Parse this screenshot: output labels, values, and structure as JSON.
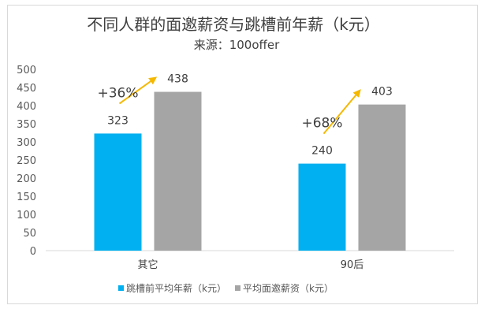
{
  "chart_data": {
    "type": "bar",
    "title": "不同人群的面邀薪资与跳槽前年薪（k元）",
    "subtitle": "来源：100offer",
    "categories": [
      "其它",
      "90后"
    ],
    "series": [
      {
        "name": "跳槽前平均年薪（k元）",
        "values": [
          323,
          240
        ],
        "color": "#00b0f0"
      },
      {
        "name": "平均面邀薪资（k元）",
        "values": [
          438,
          403
        ],
        "color": "#a5a5a5"
      }
    ],
    "ylim": [
      0,
      500
    ],
    "yticks": [
      0,
      50,
      100,
      150,
      200,
      250,
      300,
      350,
      400,
      450,
      500
    ],
    "grid": false,
    "legend_position": "bottom",
    "annotations": [
      {
        "category": "其它",
        "text": "+36%"
      },
      {
        "category": "90后",
        "text": "+68%"
      }
    ],
    "arrow_color": "#f5b800"
  }
}
